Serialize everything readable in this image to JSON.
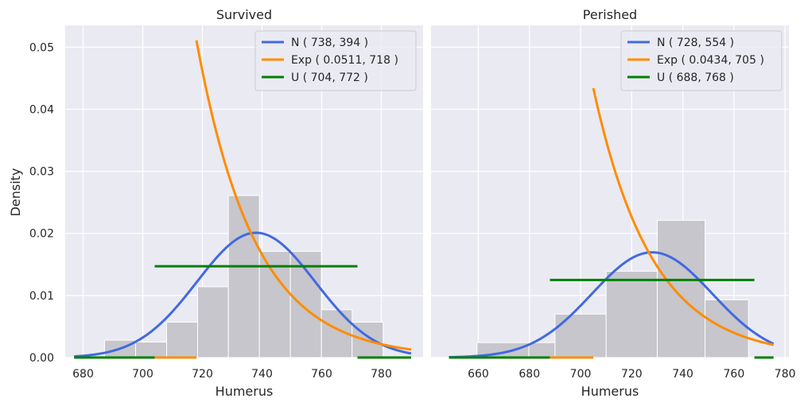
{
  "figure": {
    "ylabel": "Density",
    "style": {
      "background": "#eaeaf2",
      "grid": "#ffffff",
      "bar_fill": "#c6c6cc",
      "bar_edge": "#ffffff",
      "normal_color": "#4169e1",
      "exp_color": "#ff8c00",
      "uniform_color": "#008000"
    }
  },
  "chart_data": [
    {
      "type": "bar",
      "title": "Survived",
      "xlabel": "Humerus",
      "ylabel": "Density",
      "xlim": [
        674,
        794
      ],
      "ylim": [
        0,
        0.0535
      ],
      "xticks": [
        680,
        700,
        720,
        740,
        760,
        780
      ],
      "yticks": [
        0.0,
        0.01,
        0.02,
        0.03,
        0.04,
        0.05
      ],
      "ytick_labels": [
        "0.00",
        "0.01",
        "0.02",
        "0.03",
        "0.04",
        "0.05"
      ],
      "grid": true,
      "legend_position": "top-right",
      "histogram": {
        "bin_edges": [
          687.2,
          697.6,
          708,
          718.4,
          728.7,
          739.1,
          749.5,
          759.9,
          770.2,
          780.6
        ],
        "densities": [
          0.0028,
          0.0025,
          0.0057,
          0.0114,
          0.0261,
          0.0171,
          0.0171,
          0.0077,
          0.0057
        ]
      },
      "curves": [
        {
          "kind": "normal",
          "name": "N ( 738, 394 )",
          "mean": 738,
          "variance": 394,
          "x_range": [
            677,
            790
          ]
        },
        {
          "kind": "exponential",
          "name": "Exp ( 0.0511, 718 )",
          "rate": 0.0511,
          "loc": 718,
          "x_range": [
            677,
            790
          ]
        },
        {
          "kind": "uniform",
          "name": "U ( 704, 772 )",
          "low": 704,
          "high": 772,
          "x_range": [
            677,
            790
          ]
        }
      ]
    },
    {
      "type": "bar",
      "title": "Perished",
      "xlabel": "Humerus",
      "ylabel": "",
      "xlim": [
        641.5,
        781.5
      ],
      "ylim": [
        0,
        0.0535
      ],
      "xticks": [
        660,
        680,
        700,
        720,
        740,
        760,
        780
      ],
      "yticks": [
        0.0,
        0.01,
        0.02,
        0.03,
        0.04,
        0.05
      ],
      "grid": true,
      "legend_position": "top-right",
      "histogram": {
        "bin_edges": [
          659.5,
          679.8,
          690,
          710,
          730,
          748.7,
          765.7
        ],
        "densities": [
          0.0024,
          0.0024,
          0.007,
          0.0139,
          0.0221,
          0.0093
        ]
      },
      "curves": [
        {
          "kind": "normal",
          "name": "N ( 728, 554 )",
          "mean": 728,
          "variance": 554,
          "x_range": [
            648.5,
            775.5
          ]
        },
        {
          "kind": "exponential",
          "name": "Exp ( 0.0434, 705 )",
          "rate": 0.0434,
          "loc": 705,
          "x_range": [
            648.5,
            775.5
          ]
        },
        {
          "kind": "uniform",
          "name": "U ( 688, 768 )",
          "low": 688,
          "high": 768,
          "x_range": [
            648.5,
            775.5
          ]
        }
      ]
    }
  ]
}
